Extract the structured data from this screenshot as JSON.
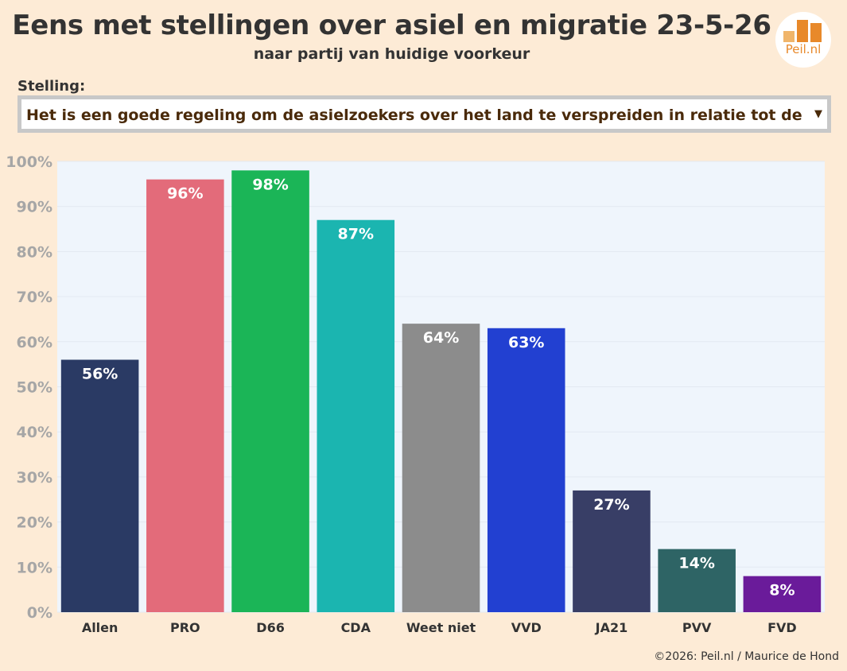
{
  "header": {
    "title": "Eens met stellingen over asiel en migratie 23-5-26",
    "subtitle": "naar partij van huidige voorkeur"
  },
  "logo": {
    "text": "Peil.nl",
    "color": "#e8892a"
  },
  "filter": {
    "label": "Stelling:",
    "selected": "Het is een goede regeling om de asielzoekers over het land te verspreiden in relatie tot de omvang",
    "arrow_icon": "triangle-down-icon"
  },
  "footer": {
    "credit": "©2026: Peil.nl / Maurice de Hond"
  },
  "chart_data": {
    "type": "bar",
    "categories": [
      "Allen",
      "PRO",
      "D66",
      "CDA",
      "Weet niet",
      "VVD",
      "JA21",
      "PVV",
      "FVD"
    ],
    "values": [
      56,
      96,
      98,
      87,
      64,
      63,
      27,
      14,
      8
    ],
    "value_labels": [
      "56%",
      "96%",
      "98%",
      "87%",
      "64%",
      "63%",
      "27%",
      "14%",
      "8%"
    ],
    "colors": [
      "#2a3a64",
      "#e36b7a",
      "#1bb557",
      "#1bb5b0",
      "#8c8c8c",
      "#2240d1",
      "#383e66",
      "#2e6465",
      "#6a1b9a"
    ],
    "ylim": [
      0,
      100
    ],
    "yticks": [
      "0%",
      "10%",
      "20%",
      "30%",
      "40%",
      "50%",
      "60%",
      "70%",
      "80%",
      "90%",
      "100%"
    ],
    "plot_background": "#eff5fc",
    "grid": true,
    "legend": false,
    "xlabel": "",
    "ylabel": ""
  }
}
